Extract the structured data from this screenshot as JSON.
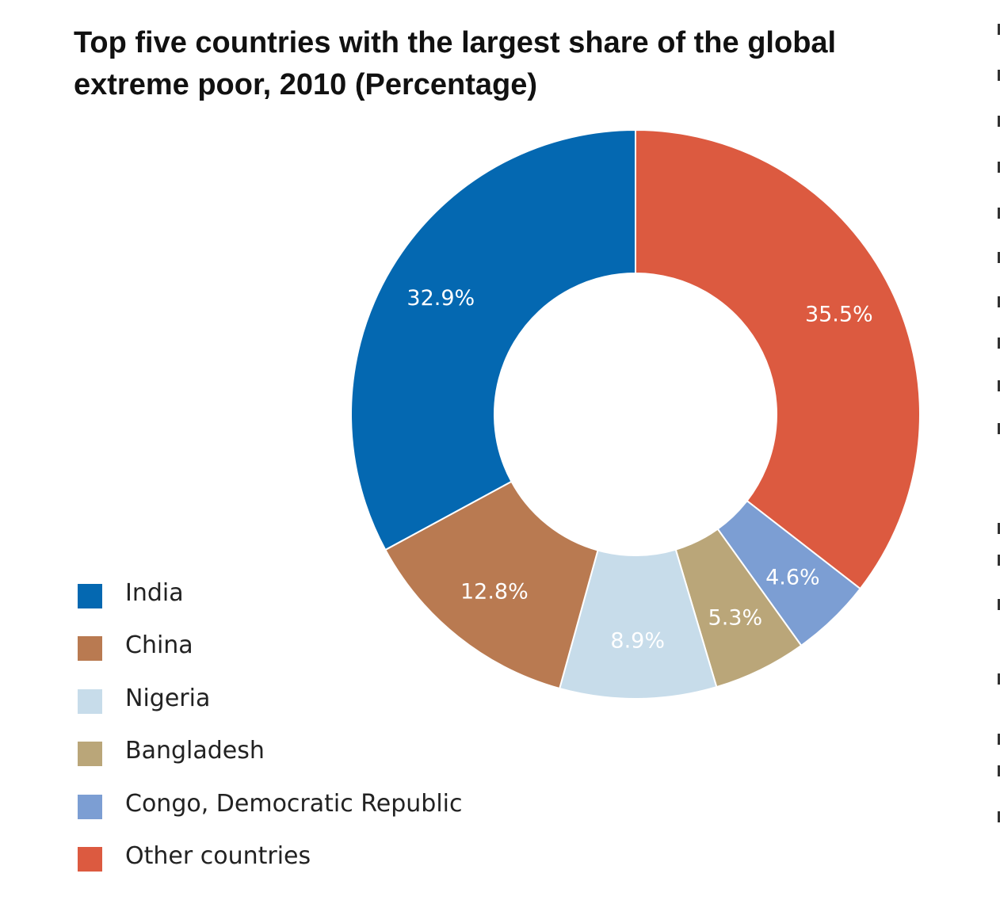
{
  "chart_data": {
    "type": "pie",
    "variant": "donut",
    "title": "Top five countries with the largest share of the global extreme poor, 2010 (Percentage)",
    "unit": "%",
    "legend_position": "bottom-left",
    "slices": [
      {
        "label": "Other countries",
        "value": 35.5,
        "display": "35.5%",
        "color": "#dc5a40"
      },
      {
        "label": "Congo, Democratic Republic",
        "value": 4.6,
        "display": "4.6%",
        "color": "#7c9ed3"
      },
      {
        "label": "Bangladesh",
        "value": 5.3,
        "display": "5.3%",
        "color": "#baa679"
      },
      {
        "label": "Nigeria",
        "value": 8.9,
        "display": "8.9%",
        "color": "#c7dcea"
      },
      {
        "label": "China",
        "value": 12.8,
        "display": "12.8%",
        "color": "#b97a51"
      },
      {
        "label": "India",
        "value": 32.9,
        "display": "32.9%",
        "color": "#0468b1"
      }
    ],
    "legend": [
      {
        "label": "India",
        "color": "#0468b1"
      },
      {
        "label": "China",
        "color": "#b97a51"
      },
      {
        "label": "Nigeria",
        "color": "#c7dcea"
      },
      {
        "label": "Bangladesh",
        "color": "#baa679"
      },
      {
        "label": "Congo, Democratic Republic",
        "color": "#7c9ed3"
      },
      {
        "label": "Other countries",
        "color": "#dc5a40"
      }
    ]
  }
}
